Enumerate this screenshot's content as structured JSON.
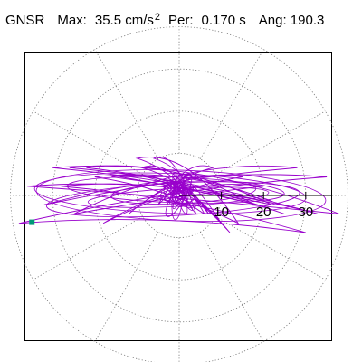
{
  "header": {
    "station": "GNSR",
    "max_label": "Max:",
    "max_value": "35.5",
    "max_unit": "cm/s",
    "max_unit_exp": "2",
    "period_label": "Per:",
    "period_value": "0.170",
    "period_unit": "s",
    "angle_label": "Ang:",
    "angle_value": "190.3"
  },
  "chart_data": {
    "type": "polar-orbit",
    "radial_ticks": [
      "10",
      "20",
      "30"
    ],
    "radial_range": [
      0,
      40
    ],
    "angular_spokes_deg": [
      0,
      30,
      60,
      90,
      120,
      150,
      180,
      210,
      240,
      270,
      300,
      330
    ],
    "grid": true,
    "trace_color": "#9900cc",
    "marker_color": "#009977",
    "axis_color": "#000000",
    "grid_color": "#777777",
    "peak": {
      "value": 35.5,
      "angle_deg": 190.3
    },
    "orbit": {
      "x": [
        0,
        3,
        -5,
        8,
        -12,
        15,
        -18,
        20,
        -25,
        28,
        -32,
        35,
        -38,
        30,
        -28,
        25,
        -22,
        18,
        -14,
        10,
        -6,
        4,
        -2,
        0,
        6,
        -9,
        12,
        -16,
        22,
        -26,
        33,
        -36,
        38,
        -30,
        24,
        -20,
        14,
        -10,
        7,
        -4,
        2
      ],
      "y": [
        0,
        2,
        -1,
        3,
        -2,
        2,
        -3,
        1,
        -2,
        3,
        -1,
        2,
        -3,
        -4,
        1,
        -2,
        3,
        -1,
        2,
        -3,
        4,
        -2,
        1,
        0,
        -2,
        3,
        -4,
        2,
        -1,
        3,
        -2,
        1,
        -2,
        3,
        -1,
        2,
        -3,
        4,
        -2,
        1,
        0
      ]
    }
  }
}
